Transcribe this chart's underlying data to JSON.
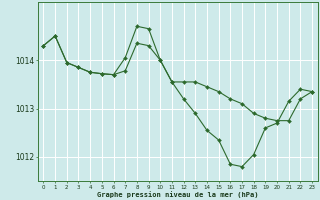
{
  "title": "Graphe pression niveau de la mer (hPa)",
  "bg_color": "#ceeaea",
  "grid_color": "#ffffff",
  "line_color": "#2d6a2d",
  "marker_color": "#2d6a2d",
  "xlim": [
    -0.5,
    23.5
  ],
  "ylim": [
    1011.5,
    1015.2
  ],
  "yticks": [
    1012,
    1013,
    1014
  ],
  "xticks": [
    0,
    1,
    2,
    3,
    4,
    5,
    6,
    7,
    8,
    9,
    10,
    11,
    12,
    13,
    14,
    15,
    16,
    17,
    18,
    19,
    20,
    21,
    22,
    23
  ],
  "series": [
    {
      "x": [
        0,
        1,
        2,
        3,
        4,
        5,
        6,
        7,
        8,
        9,
        10,
        11,
        12,
        13,
        14,
        15,
        16,
        17,
        18,
        19,
        20,
        21,
        22,
        23
      ],
      "y": [
        1014.3,
        1014.5,
        1013.95,
        1013.85,
        1013.75,
        1013.72,
        1013.7,
        1013.78,
        1014.35,
        1014.3,
        1014.0,
        1013.55,
        1013.55,
        1013.55,
        1013.45,
        1013.35,
        1013.2,
        1013.1,
        1012.9,
        1012.8,
        1012.75,
        1012.75,
        1013.2,
        1013.35
      ]
    },
    {
      "x": [
        0,
        1,
        2,
        3,
        4,
        5,
        6,
        7,
        8,
        9,
        10,
        11,
        12,
        13,
        14,
        15,
        16,
        17,
        18,
        19,
        20,
        21,
        22,
        23
      ],
      "y": [
        1014.3,
        1014.5,
        1013.95,
        1013.85,
        1013.75,
        1013.72,
        1013.7,
        1014.05,
        1014.7,
        1014.65,
        1014.0,
        1013.55,
        1013.2,
        1012.9,
        1012.55,
        1012.35,
        1011.85,
        1011.8,
        1012.05,
        1012.6,
        1012.7,
        1013.15,
        1013.4,
        1013.35
      ]
    }
  ]
}
